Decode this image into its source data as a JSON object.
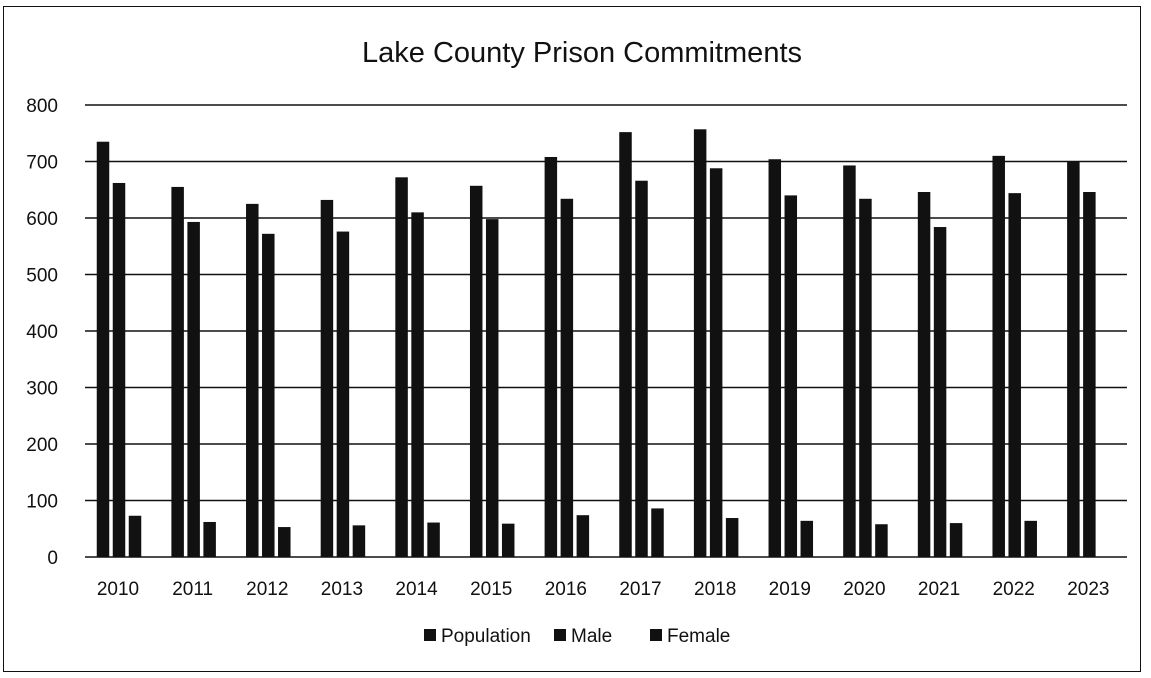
{
  "chart_data": {
    "type": "bar",
    "title": "Lake County Prison Commitments",
    "categories": [
      "2010",
      "2011",
      "2012",
      "2013",
      "2014",
      "2015",
      "2016",
      "2017",
      "2018",
      "2019",
      "2020",
      "2021",
      "2022",
      "2023"
    ],
    "series": [
      {
        "name": "Population",
        "values": [
          735,
          655,
          625,
          632,
          672,
          657,
          708,
          752,
          757,
          704,
          693,
          646,
          710,
          700
        ]
      },
      {
        "name": "Male",
        "values": [
          662,
          593,
          572,
          576,
          610,
          598,
          634,
          666,
          688,
          640,
          634,
          584,
          644,
          646
        ]
      },
      {
        "name": "Female",
        "values": [
          73,
          62,
          53,
          56,
          61,
          59,
          74,
          86,
          69,
          64,
          58,
          60,
          64,
          0
        ]
      }
    ],
    "ylim": [
      0,
      800
    ],
    "yticks": [
      "0",
      "100",
      "200",
      "300",
      "400",
      "500",
      "600",
      "700",
      "800"
    ],
    "grid": true,
    "legend_position": "bottom",
    "colors": {
      "bars": "#111111",
      "background": "#ffffff"
    }
  }
}
